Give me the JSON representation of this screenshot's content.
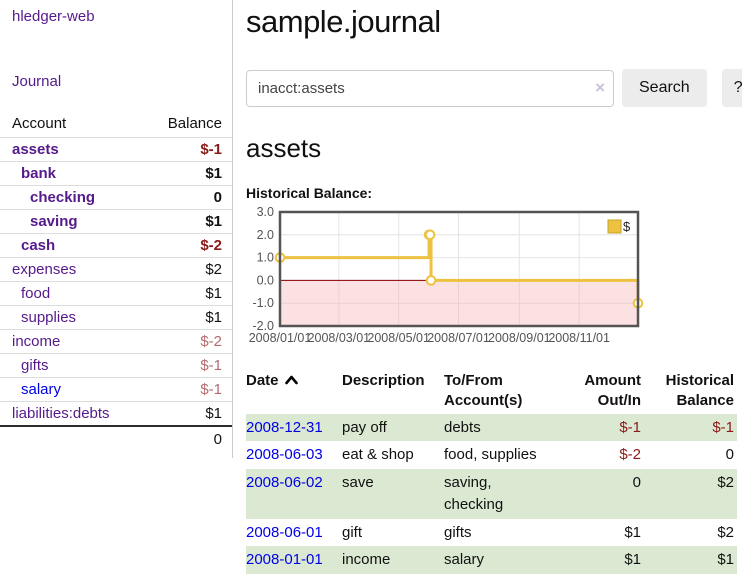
{
  "palette": {
    "link_visited": "#551a8b",
    "link_unvisited": "#0000e6",
    "negative_strong": "#8b1a1a",
    "negative_soft": "#b36b71",
    "row_stripe_green": "#dbe9d3",
    "button_bg": "#ececec"
  },
  "sidebar": {
    "app_title": "hledger-web",
    "journal_label": "Journal",
    "table": {
      "account_header": "Account",
      "balance_header": "Balance",
      "accounts": [
        {
          "name": "assets",
          "depth": 1,
          "bold": true,
          "balance": "$-1",
          "balance_tone": "neg",
          "link": "visited"
        },
        {
          "name": "bank",
          "depth": 2,
          "bold": true,
          "balance": "$1",
          "balance_tone": "normal",
          "link": "visited"
        },
        {
          "name": "checking",
          "depth": 3,
          "bold": true,
          "balance": "0",
          "balance_tone": "normal",
          "link": "visited"
        },
        {
          "name": "saving",
          "depth": 3,
          "bold": true,
          "balance": "$1",
          "balance_tone": "normal",
          "link": "visited"
        },
        {
          "name": "cash",
          "depth": 2,
          "bold": true,
          "balance": "$-2",
          "balance_tone": "neg",
          "link": "visited"
        },
        {
          "name": "expenses",
          "depth": 1,
          "bold": false,
          "balance": "$2",
          "balance_tone": "normal",
          "link": "visited"
        },
        {
          "name": "food",
          "depth": 2,
          "bold": false,
          "balance": "$1",
          "balance_tone": "normal",
          "link": "visited"
        },
        {
          "name": "supplies",
          "depth": 2,
          "bold": false,
          "balance": "$1",
          "balance_tone": "normal",
          "link": "visited"
        },
        {
          "name": "income",
          "depth": 1,
          "bold": false,
          "balance": "$-2",
          "balance_tone": "neg-soft",
          "link": "visited"
        },
        {
          "name": "gifts",
          "depth": 2,
          "bold": false,
          "balance": "$-1",
          "balance_tone": "neg-soft",
          "link": "visited"
        },
        {
          "name": "salary",
          "depth": 2,
          "bold": false,
          "balance": "$-1",
          "balance_tone": "neg-soft",
          "link": "unvisited"
        },
        {
          "name": "liabilities:debts",
          "depth": 1,
          "bold": false,
          "balance": "$1",
          "balance_tone": "normal",
          "link": "visited"
        }
      ],
      "total": "0"
    }
  },
  "main": {
    "title": "sample.journal",
    "search": {
      "query": "inacct:assets",
      "clear_icon": "×",
      "search_label": "Search",
      "help_label": "?"
    },
    "account_heading": "assets",
    "chart_label": "Historical Balance:",
    "register": {
      "headers": {
        "date": "Date",
        "description": "Description",
        "accounts": "To/From Account(s)",
        "amount": "Amount Out/In",
        "balance": "Historical Balance"
      },
      "rows": [
        {
          "date": "2008-12-31",
          "description": "pay off",
          "accounts": "debts",
          "amount": "$-1",
          "amount_tone": "neg",
          "balance": "$-1",
          "balance_tone": "neg",
          "green": true
        },
        {
          "date": "2008-06-03",
          "description": "eat & shop",
          "accounts": "food, supplies",
          "amount": "$-2",
          "amount_tone": "neg",
          "balance": "0",
          "balance_tone": "normal",
          "green": false
        },
        {
          "date": "2008-06-02",
          "description": "save",
          "accounts": "saving, checking",
          "amount": "0",
          "amount_tone": "normal",
          "balance": "$2",
          "balance_tone": "normal",
          "green": true
        },
        {
          "date": "2008-06-01",
          "description": "gift",
          "accounts": "gifts",
          "amount": "$1",
          "amount_tone": "normal",
          "balance": "$2",
          "balance_tone": "normal",
          "green": false
        },
        {
          "date": "2008-01-01",
          "description": "income",
          "accounts": "salary",
          "amount": "$1",
          "amount_tone": "normal",
          "balance": "$1",
          "balance_tone": "normal",
          "green": true
        }
      ]
    }
  },
  "chart_data": {
    "type": "line",
    "title": "Historical Balance",
    "step": true,
    "series": [
      {
        "name": "$",
        "x": [
          "2008-01-01",
          "2008-06-01",
          "2008-06-02",
          "2008-06-03",
          "2008-12-31"
        ],
        "values": [
          1,
          2,
          2,
          0,
          -1
        ]
      }
    ],
    "x_range": [
      "2008-01-01",
      "2008-12-31"
    ],
    "ylim": [
      -2,
      3
    ],
    "y_ticks": [
      3.0,
      2.0,
      1.0,
      0.0,
      -1.0,
      -2.0
    ],
    "y_tick_labels": [
      "3.0",
      "2.0",
      "1.0",
      "0.0",
      "-1.0",
      "-2.0"
    ],
    "x_ticks": [
      "2008-01-01",
      "2008-03-01",
      "2008-05-01",
      "2008-07-01",
      "2008-09-01",
      "2008-11-01"
    ],
    "x_tick_labels": [
      "2008/01/01",
      "2008/03/01",
      "2008/05/01",
      "2008/07/01",
      "2008/09/01",
      "2008/11/01"
    ],
    "grid": true,
    "legend_position": "top-right",
    "legend": [
      {
        "label": "$",
        "color": "#EDC240"
      }
    ],
    "colors": {
      "line": "#EDC240",
      "marker_fill": "#ffffff",
      "zero_line": "#8b0000",
      "negative_region": "#f4b0b0",
      "grid": "#e4e4e4",
      "border": "#545454",
      "tick_text": "#545454"
    }
  }
}
